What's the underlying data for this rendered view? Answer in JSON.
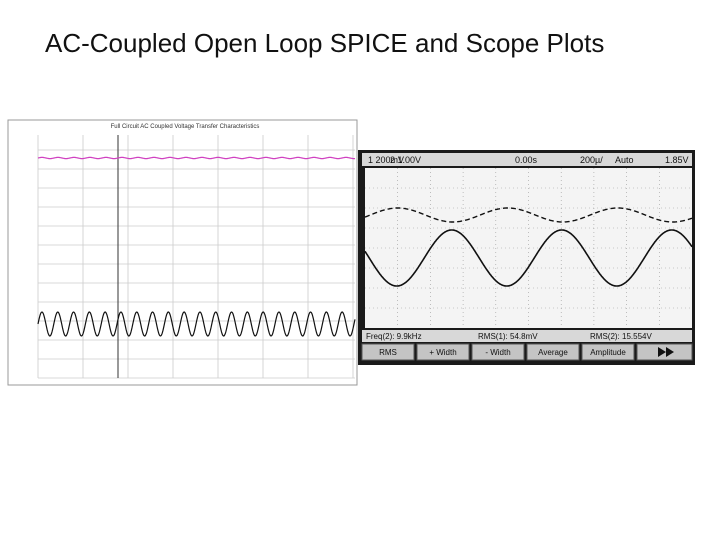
{
  "title": "AC-Coupled Open Loop SPICE and Scope Plots",
  "spice": {
    "title": "Full Circuit AC Coupled Voltage Transfer Characteristics"
  },
  "scope": {
    "header": [
      "1 200mV",
      "2 1.00V",
      "0.00s",
      "200µ/",
      "Auto",
      "1.85V"
    ],
    "readouts": [
      "Freq(2): 9.9kHz",
      "RMS(1): 54.8mV",
      "RMS(2): 15.554V"
    ],
    "softkeys": [
      "RMS",
      "+ Width",
      "- Width",
      "Average",
      "Amplitude"
    ]
  }
}
